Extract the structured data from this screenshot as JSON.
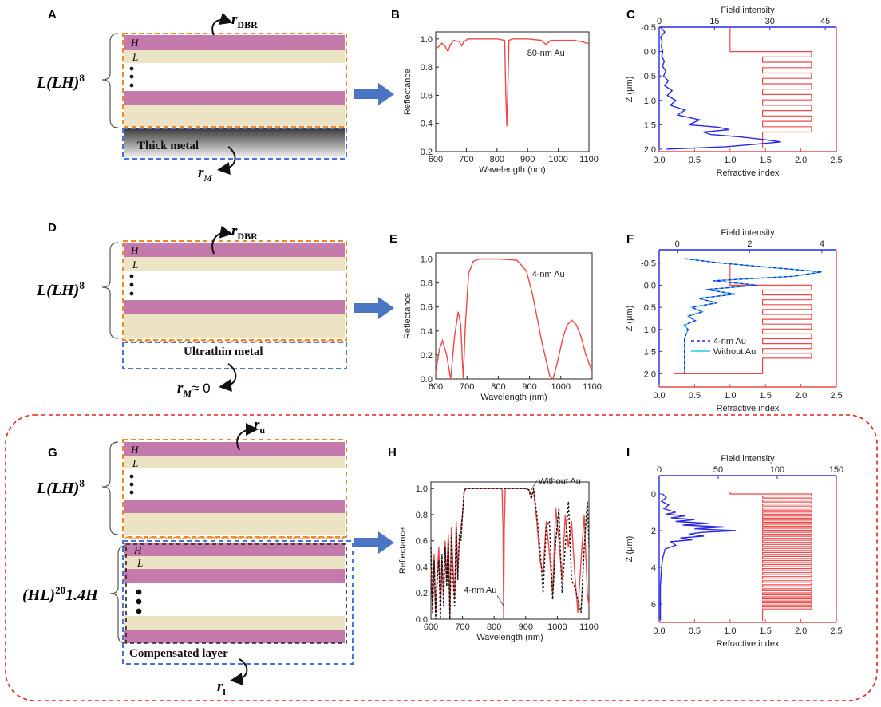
{
  "panel_labels": [
    "A",
    "B",
    "C",
    "D",
    "E",
    "F",
    "G",
    "H",
    "I"
  ],
  "schematics": {
    "A": {
      "formula": "L(LH)",
      "sup": "8",
      "H": "H",
      "L": "L",
      "metal": "Thick metal",
      "r_top": "r",
      "r_top_sub": "DBR",
      "r_bottom": "r",
      "r_bottom_sub": "M"
    },
    "D": {
      "formula": "L(LH)",
      "sup": "8",
      "H": "H",
      "L": "L",
      "metal": "Ultrathin metal",
      "r_top": "r",
      "r_top_sub": "DBR",
      "r_bottom": "r",
      "r_bottom_sub": "M",
      "r_bottom_tail": "≈ 0"
    },
    "G": {
      "formula": "L(LH)",
      "sup": "8",
      "formula2": "(HL)",
      "sup2": "20",
      "formula2_tail": "1.4H",
      "H": "H",
      "L": "L",
      "metal": "Compensated layer",
      "r_top": "r",
      "r_top_sub": "u",
      "r_bottom": "r",
      "r_bottom_sub": "l"
    }
  },
  "colors": {
    "H_layer": "#c47aaa",
    "L_layer": "#ebe3c4",
    "orange_box": "#f08a24",
    "blue_box": "#4a72d8",
    "arrow": "#4a74c4",
    "red": "#ee4848",
    "blue": "#2828e8",
    "cyan": "#22c8dd",
    "dashed_frame": "#e82020"
  },
  "chart_data": [
    {
      "panel": "B",
      "type": "line",
      "annotation": "80-nm Au",
      "xlabel": "Wavelength (nm)",
      "ylabel": "Reflectance",
      "xlim": [
        600,
        1100
      ],
      "ylim": [
        0.2,
        1.05
      ],
      "xticks": [
        "600",
        "700",
        "800",
        "900",
        "1000",
        "1100"
      ],
      "yticks": [
        "0.2",
        "0.4",
        "0.6",
        "0.8",
        "1.0"
      ],
      "series": [
        {
          "color": "red",
          "x": [
            600,
            612,
            620,
            630,
            640,
            648,
            660,
            678,
            685,
            692,
            705,
            740,
            800,
            825,
            829,
            832,
            835,
            839,
            850,
            900,
            945,
            955,
            960,
            965,
            975,
            1000,
            1050,
            1080,
            1090,
            1100
          ],
          "y": [
            0.93,
            0.95,
            0.97,
            0.95,
            0.91,
            0.96,
            0.99,
            0.98,
            0.95,
            0.98,
            1.0,
            1.0,
            1.0,
            0.99,
            0.6,
            0.38,
            0.6,
            0.99,
            1.0,
            1.0,
            0.99,
            0.97,
            0.96,
            0.97,
            0.99,
            0.99,
            0.99,
            0.98,
            0.97,
            0.97
          ]
        }
      ]
    },
    {
      "panel": "C",
      "type": "line",
      "xlabel": "Refractive index",
      "x2label": "Field intensity",
      "ylabel": "Z (μm)",
      "xlim": [
        0,
        2.5
      ],
      "x2lim": [
        0,
        48
      ],
      "ylim": [
        -0.5,
        2.05
      ],
      "xticks": [
        "0.0",
        "0.5",
        "1.0",
        "1.5",
        "2.0",
        "2.5"
      ],
      "x2ticks": [
        "0",
        "15",
        "30",
        "45"
      ],
      "yticks": [
        "-0.5",
        "0.0",
        "0.5",
        "1.0",
        "1.5",
        "2.0"
      ],
      "index_series": {
        "color": "red",
        "n_air": 1.0,
        "n_H": 2.15,
        "n_L": 1.46,
        "n_sub": 1.46,
        "air_top": -0.5,
        "start": 0.0,
        "pairs": 8,
        "period": 0.22,
        "end": 1.98
      },
      "field_series": {
        "color": "blue",
        "z": [
          -0.5,
          -0.45,
          -0.4,
          -0.35,
          -0.3,
          -0.25,
          -0.2,
          -0.1,
          0,
          0.1,
          0.2,
          0.3,
          0.4,
          0.5,
          0.6,
          0.7,
          0.8,
          0.9,
          1.0,
          1.1,
          1.2,
          1.3,
          1.4,
          1.5,
          1.55,
          1.6,
          1.65,
          1.7,
          1.75,
          1.8,
          1.85,
          1.9,
          1.95,
          2.0
        ],
        "I": [
          0.3,
          1.0,
          1.5,
          1.0,
          0.4,
          0.6,
          0.8,
          0.6,
          1.0,
          0.7,
          1.4,
          0.9,
          1.8,
          1.2,
          2.5,
          1.5,
          3.5,
          2.2,
          4.5,
          3.0,
          7,
          5,
          11,
          8,
          16,
          19,
          12,
          14,
          22,
          28,
          33,
          26,
          18,
          2
        ]
      }
    },
    {
      "panel": "E",
      "type": "line",
      "annotation": "4-nm Au",
      "xlabel": "Wavelength (nm)",
      "ylabel": "Reflectance",
      "xlim": [
        600,
        1100
      ],
      "ylim": [
        0,
        1.05
      ],
      "xticks": [
        "600",
        "700",
        "800",
        "900",
        "1000",
        "1100"
      ],
      "yticks": [
        "0.0",
        "0.2",
        "0.4",
        "0.6",
        "0.8",
        "1.0"
      ],
      "series": [
        {
          "color": "red",
          "x": [
            600,
            612,
            622,
            635,
            648,
            660,
            672,
            680,
            688,
            695,
            705,
            720,
            740,
            760,
            800,
            860,
            890,
            910,
            940,
            965,
            975,
            990,
            1005,
            1020,
            1035,
            1050,
            1065,
            1080,
            1100
          ],
          "y": [
            0.05,
            0.25,
            0.32,
            0.2,
            0.0,
            0.35,
            0.56,
            0.45,
            0.0,
            0.45,
            0.88,
            0.98,
            1.0,
            1.0,
            1.0,
            0.99,
            0.9,
            0.7,
            0.3,
            0.02,
            0.0,
            0.15,
            0.33,
            0.45,
            0.49,
            0.45,
            0.35,
            0.2,
            0.06
          ]
        }
      ]
    },
    {
      "panel": "F",
      "type": "line",
      "xlabel": "Refractive index",
      "x2label": "Field intensity",
      "ylabel": "Z (μm)",
      "xlim": [
        0,
        2.5
      ],
      "x2lim": [
        -0.5,
        4.4
      ],
      "ylim": [
        -0.8,
        2.3
      ],
      "xticks": [
        "0.0",
        "0.5",
        "1.0",
        "1.5",
        "2.0",
        "2.5"
      ],
      "x2ticks": [
        "0",
        "2",
        "4"
      ],
      "yticks": [
        "-0.5",
        "0.0",
        "0.5",
        "1.0",
        "1.5",
        "2.0"
      ],
      "legend": [
        {
          "label": "4-nm Au",
          "style": "dashed",
          "color": "blue"
        },
        {
          "label": "Without Au",
          "style": "solid",
          "color": "cyan"
        }
      ],
      "index_series": {
        "color": "red",
        "n_air": 1.0,
        "n_H": 2.15,
        "n_L": 1.46,
        "n_sub": 0.2,
        "air_top": -0.5,
        "start": 0.0,
        "pairs": 8,
        "period": 0.22,
        "end": 2.0
      },
      "field_series": {
        "z": [
          -0.6,
          -0.5,
          -0.4,
          -0.3,
          -0.2,
          -0.1,
          0,
          0.1,
          0.2,
          0.3,
          0.4,
          0.5,
          0.6,
          0.7,
          0.8,
          0.9,
          1.0,
          1.2,
          1.4,
          1.6,
          1.8,
          2.0
        ],
        "I": [
          0.2,
          1.2,
          2.6,
          4.0,
          3.2,
          1.0,
          2.2,
          0.8,
          1.6,
          0.6,
          1.1,
          0.4,
          0.7,
          0.3,
          0.5,
          0.2,
          0.3,
          0.2,
          0.2,
          0.2,
          0.2,
          0.2
        ]
      }
    },
    {
      "panel": "H",
      "type": "line",
      "xlabel": "Wavelength (nm)",
      "ylabel": "Reflectance",
      "xlim": [
        600,
        1100
      ],
      "ylim": [
        0,
        1.05
      ],
      "xticks": [
        "600",
        "700",
        "800",
        "900",
        "1000",
        "1100"
      ],
      "yticks": [
        "0.0",
        "0.2",
        "0.4",
        "0.6",
        "0.8",
        "1.0"
      ],
      "annotations": [
        {
          "text": "Without Au"
        },
        {
          "text": "4-nm Au"
        }
      ],
      "series": [
        {
          "name": "4-nm Au",
          "color": "red",
          "style": "solid",
          "x": [
            600,
            605,
            610,
            615,
            620,
            625,
            630,
            635,
            640,
            645,
            650,
            655,
            660,
            665,
            670,
            675,
            680,
            685,
            690,
            695,
            700,
            705,
            710,
            730,
            800,
            825,
            828,
            830,
            832,
            835,
            900,
            910,
            918,
            925,
            935,
            945,
            955,
            965,
            975,
            985,
            995,
            1005,
            1015,
            1025,
            1035,
            1045,
            1055,
            1065,
            1075,
            1085,
            1095,
            1100
          ],
          "y": [
            0.4,
            0.1,
            0.5,
            0.05,
            0.35,
            0.55,
            0.1,
            0.45,
            0.2,
            0.6,
            0.3,
            0.65,
            0.05,
            0.7,
            0.4,
            0.15,
            0.75,
            0.35,
            0.6,
            0.7,
            0.8,
            0.97,
            1.0,
            1.0,
            1.0,
            1.0,
            0.7,
            0.0,
            0.7,
            1.0,
            1.0,
            0.99,
            0.95,
            0.98,
            0.75,
            0.45,
            0.35,
            0.75,
            0.5,
            0.2,
            0.85,
            0.6,
            0.3,
            0.8,
            0.55,
            0.75,
            0.35,
            0.05,
            0.45,
            0.8,
            0.2,
            0.1
          ]
        },
        {
          "name": "Without Au",
          "color": "black",
          "style": "dashed",
          "x": [
            600,
            605,
            610,
            615,
            620,
            625,
            630,
            635,
            640,
            645,
            650,
            655,
            660,
            665,
            670,
            675,
            680,
            685,
            690,
            695,
            700,
            705,
            710,
            730,
            800,
            900,
            910,
            918,
            925,
            935,
            945,
            955,
            965,
            975,
            985,
            995,
            1005,
            1015,
            1025,
            1035,
            1045,
            1055,
            1065,
            1075,
            1085,
            1095,
            1100
          ],
          "y": [
            0.55,
            0.05,
            0.45,
            0.0,
            0.3,
            0.45,
            0.0,
            0.5,
            0.1,
            0.55,
            0.25,
            0.6,
            0.0,
            0.65,
            0.3,
            0.1,
            0.7,
            0.3,
            0.65,
            0.6,
            0.8,
            0.98,
            1.0,
            1.0,
            1.0,
            1.0,
            0.99,
            0.92,
            1.0,
            0.8,
            0.55,
            0.2,
            0.7,
            0.75,
            0.15,
            0.6,
            0.85,
            0.2,
            0.55,
            0.9,
            0.3,
            0.25,
            0.15,
            0.05,
            0.55,
            0.9,
            0.55
          ]
        }
      ]
    },
    {
      "panel": "I",
      "type": "line",
      "xlabel": "Refractive index",
      "x2label": "Field intensity",
      "ylabel": "Z (μm)",
      "xlim": [
        0,
        2.5
      ],
      "x2lim": [
        0,
        150
      ],
      "ylim": [
        -1.0,
        7.0
      ],
      "xticks": [
        "0.0",
        "0.5",
        "1.0",
        "1.5",
        "2.0",
        "2.5"
      ],
      "x2ticks": [
        "0",
        "50",
        "100",
        "150"
      ],
      "yticks": [
        "0",
        "2",
        "4",
        "6"
      ],
      "index_series": {
        "color": "red",
        "n_air": 1.0,
        "n_H": 2.15,
        "n_L": 1.46,
        "n_sub": 1.46,
        "air_top": -0.1,
        "start": 0.0,
        "pairs": 29,
        "period": 0.22,
        "end": 6.9
      },
      "field_series": {
        "color": "blue",
        "z": [
          0.0,
          0.2,
          0.4,
          0.6,
          0.8,
          1.0,
          1.1,
          1.2,
          1.3,
          1.4,
          1.5,
          1.6,
          1.7,
          1.8,
          1.9,
          2.0,
          2.1,
          2.2,
          2.3,
          2.4,
          2.5,
          2.6,
          2.8,
          3.0,
          3.5,
          4.0,
          5.0,
          6.0,
          6.9
        ],
        "I": [
          3,
          6,
          2,
          8,
          4,
          14,
          6,
          22,
          10,
          30,
          14,
          42,
          20,
          55,
          30,
          65,
          35,
          25,
          38,
          18,
          28,
          10,
          14,
          5,
          3,
          2,
          1,
          1,
          1
        ]
      }
    }
  ]
}
